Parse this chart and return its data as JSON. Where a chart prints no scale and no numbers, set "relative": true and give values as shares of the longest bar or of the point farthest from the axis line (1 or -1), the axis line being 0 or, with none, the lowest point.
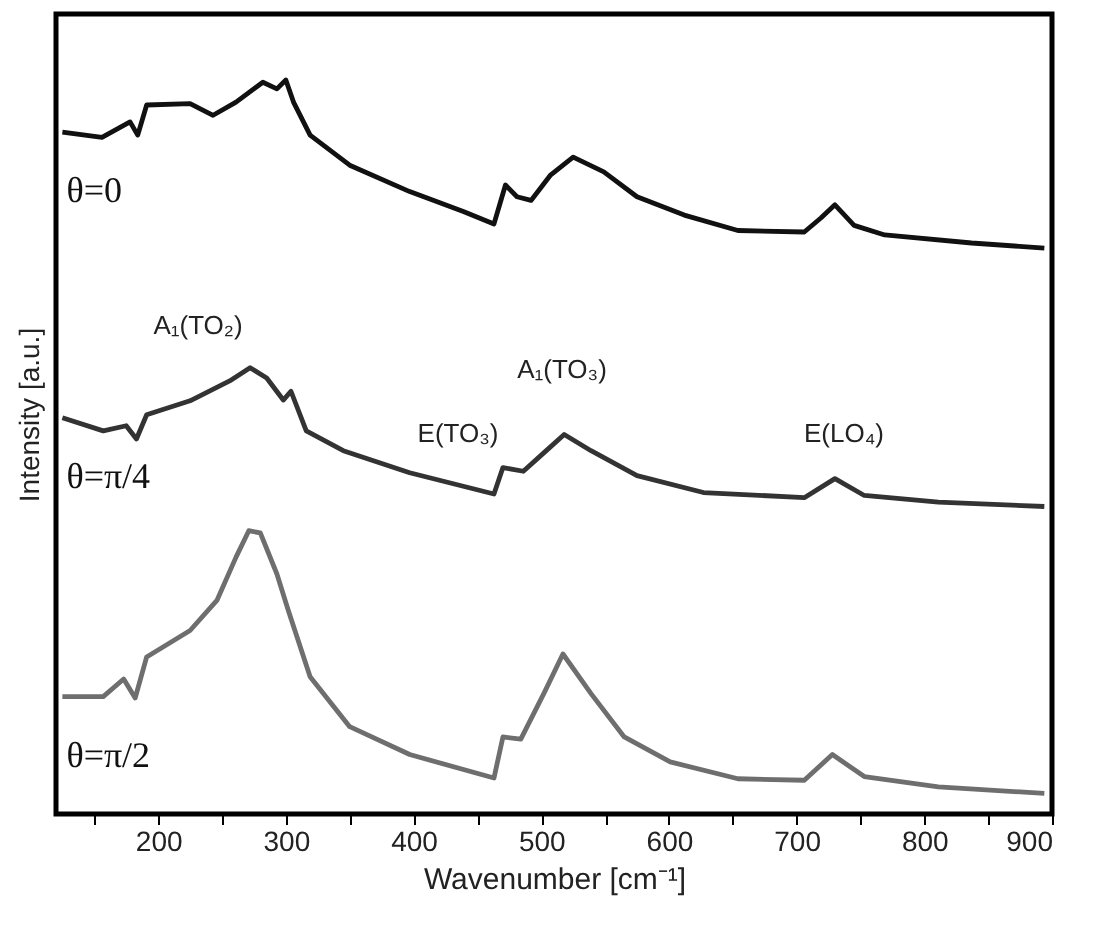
{
  "chart_data": {
    "type": "line",
    "relative": true,
    "xlabel": "Wavenumber [cm⁻¹]",
    "ylabel": "Intensity [a.u.]",
    "xlim": [
      120,
      900
    ],
    "xticks": [
      {
        "value": 150,
        "label": null
      },
      200,
      {
        "value": 250,
        "label": null
      },
      300,
      {
        "value": 350,
        "label": null
      },
      400,
      {
        "value": 450,
        "label": null
      },
      500,
      {
        "value": 550,
        "label": null
      },
      600,
      {
        "value": 650,
        "label": null
      },
      700,
      {
        "value": 750,
        "label": null
      },
      800,
      {
        "value": 850,
        "label": null
      },
      900
    ],
    "grid": false,
    "marker": "none",
    "line_style": "solid",
    "series": [
      {
        "name": "θ=0",
        "color": "#111111",
        "x": [
          125,
          156,
          178,
          184,
          191,
          225,
          243,
          261,
          282,
          293,
          300,
          306,
          319,
          350,
          397,
          439,
          463,
          472,
          481,
          492,
          507,
          525,
          549,
          575,
          612,
          654,
          706,
          719,
          730,
          745,
          769,
          837,
          894
        ],
        "values": [
          0.929,
          0.922,
          0.943,
          0.925,
          0.966,
          0.968,
          0.952,
          0.97,
          0.997,
          0.988,
          1.0,
          0.97,
          0.925,
          0.884,
          0.848,
          0.821,
          0.804,
          0.857,
          0.841,
          0.836,
          0.87,
          0.895,
          0.875,
          0.841,
          0.816,
          0.795,
          0.793,
          0.812,
          0.83,
          0.802,
          0.789,
          0.778,
          0.771
        ]
      },
      {
        "name": "θ=π/4",
        "color": "#333333",
        "x": [
          125,
          157,
          175,
          183,
          191,
          225,
          256,
          272,
          285,
          298,
          304,
          316,
          345,
          397,
          463,
          470,
          486,
          502,
          518,
          539,
          575,
          627,
          706,
          730,
          753,
          811,
          894
        ],
        "values": [
          0.54,
          0.522,
          0.529,
          0.511,
          0.544,
          0.563,
          0.59,
          0.608,
          0.594,
          0.564,
          0.576,
          0.522,
          0.495,
          0.465,
          0.436,
          0.472,
          0.467,
          0.492,
          0.517,
          0.495,
          0.461,
          0.438,
          0.431,
          0.457,
          0.434,
          0.425,
          0.419
        ]
      },
      {
        "name": "θ=π/2",
        "color": "#6e6e6e",
        "x": [
          125,
          157,
          173,
          182,
          191,
          225,
          246,
          261,
          271,
          280,
          293,
          302,
          319,
          350,
          397,
          463,
          470,
          484,
          502,
          517,
          539,
          565,
          601,
          654,
          706,
          728,
          753,
          811,
          894
        ],
        "values": [
          0.16,
          0.16,
          0.184,
          0.158,
          0.214,
          0.25,
          0.291,
          0.35,
          0.386,
          0.383,
          0.327,
          0.277,
          0.187,
          0.119,
          0.081,
          0.049,
          0.105,
          0.102,
          0.164,
          0.218,
          0.164,
          0.105,
          0.071,
          0.048,
          0.046,
          0.081,
          0.051,
          0.037,
          0.028
        ]
      }
    ],
    "annotations": [
      "A₁(TO₂)",
      "E(TO₃)",
      "A₁(TO₃)",
      "E(LO₄)"
    ]
  }
}
